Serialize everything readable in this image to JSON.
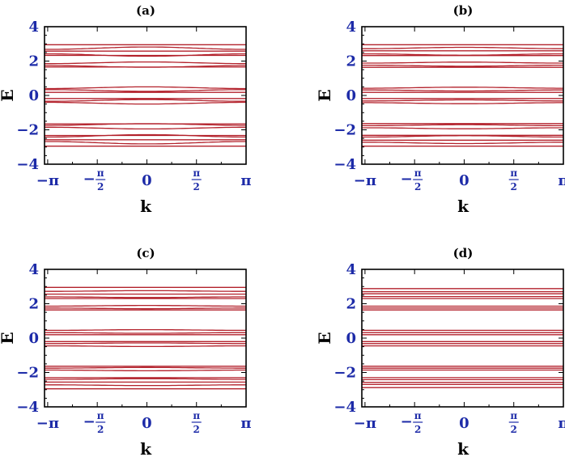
{
  "chart_data": [
    {
      "type": "line",
      "title": "(a)",
      "xlabel": "k",
      "ylabel": "E",
      "xlim": [
        -3.2416,
        3.1416
      ],
      "ylim": [
        -4,
        4
      ],
      "xticks": [
        "−π",
        "−π/2",
        "0",
        "π/2",
        "π"
      ],
      "yticks": [
        "−4",
        "−2",
        "0",
        "2",
        "4"
      ],
      "line_color": "#b3212b",
      "bands": [
        {
          "c": 2.95,
          "a": 0.0
        },
        {
          "c": 2.68,
          "a": 0.07
        },
        {
          "c": 2.58,
          "a": 0.0
        },
        {
          "c": 2.42,
          "a": -0.07
        },
        {
          "c": 2.33,
          "a": 0.0
        },
        {
          "c": 1.85,
          "a": 0.05
        },
        {
          "c": 1.74,
          "a": -0.05
        },
        {
          "c": 1.65,
          "a": 0.0
        },
        {
          "c": 0.4,
          "a": 0.05
        },
        {
          "c": 0.34,
          "a": -0.05
        },
        {
          "c": 0.18,
          "a": 0.0
        },
        {
          "c": -0.18,
          "a": 0.0
        },
        {
          "c": -0.34,
          "a": 0.05
        },
        {
          "c": -0.4,
          "a": -0.05
        },
        {
          "c": -1.65,
          "a": 0.0
        },
        {
          "c": -1.74,
          "a": 0.05
        },
        {
          "c": -1.85,
          "a": -0.05
        },
        {
          "c": -2.33,
          "a": 0.0
        },
        {
          "c": -2.42,
          "a": 0.07
        },
        {
          "c": -2.58,
          "a": 0.0
        },
        {
          "c": -2.68,
          "a": -0.07
        },
        {
          "c": -2.95,
          "a": 0.0
        }
      ]
    },
    {
      "type": "line",
      "title": "(b)",
      "xlabel": "k",
      "ylabel": "E",
      "xlim": [
        -3.2416,
        3.1416
      ],
      "ylim": [
        -4,
        4
      ],
      "xticks": [
        "−π",
        "−π/2",
        "0",
        "π/2",
        "π"
      ],
      "yticks": [
        "−4",
        "−2",
        "0",
        "2",
        "4"
      ],
      "line_color": "#b3212b",
      "bands": [
        {
          "c": 2.95,
          "a": 0.0
        },
        {
          "c": 2.72,
          "a": 0.04
        },
        {
          "c": 2.6,
          "a": 0.0
        },
        {
          "c": 2.42,
          "a": -0.04
        },
        {
          "c": 2.32,
          "a": 0.0
        },
        {
          "c": 1.88,
          "a": 0.03
        },
        {
          "c": 1.76,
          "a": -0.03
        },
        {
          "c": 1.64,
          "a": 0.0
        },
        {
          "c": 0.42,
          "a": 0.03
        },
        {
          "c": 0.32,
          "a": -0.03
        },
        {
          "c": 0.18,
          "a": 0.0
        },
        {
          "c": -0.18,
          "a": 0.0
        },
        {
          "c": -0.32,
          "a": 0.03
        },
        {
          "c": -0.42,
          "a": -0.03
        },
        {
          "c": -1.64,
          "a": 0.0
        },
        {
          "c": -1.76,
          "a": 0.03
        },
        {
          "c": -1.88,
          "a": -0.03
        },
        {
          "c": -2.32,
          "a": 0.0
        },
        {
          "c": -2.42,
          "a": 0.04
        },
        {
          "c": -2.6,
          "a": 0.0
        },
        {
          "c": -2.72,
          "a": -0.04
        },
        {
          "c": -2.95,
          "a": 0.0
        }
      ]
    },
    {
      "type": "line",
      "title": "(c)",
      "xlabel": "k",
      "ylabel": "E",
      "xlim": [
        -3.2416,
        3.1416
      ],
      "ylim": [
        -4,
        4
      ],
      "xticks": [
        "−π",
        "−π/2",
        "0",
        "π/2",
        "π"
      ],
      "yticks": [
        "−4",
        "−2",
        "0",
        "2",
        "4"
      ],
      "line_color": "#b3212b",
      "bands": [
        {
          "c": 2.95,
          "a": 0.0
        },
        {
          "c": 2.72,
          "a": 0.02
        },
        {
          "c": 2.56,
          "a": 0.0
        },
        {
          "c": 2.4,
          "a": -0.02
        },
        {
          "c": 2.3,
          "a": 0.0
        },
        {
          "c": 1.86,
          "a": 0.02
        },
        {
          "c": 1.75,
          "a": -0.02
        },
        {
          "c": 1.64,
          "a": 0.0
        },
        {
          "c": 0.45,
          "a": 0.02
        },
        {
          "c": 0.32,
          "a": -0.02
        },
        {
          "c": 0.2,
          "a": 0.0
        },
        {
          "c": -0.2,
          "a": 0.0
        },
        {
          "c": -0.32,
          "a": 0.02
        },
        {
          "c": -0.45,
          "a": -0.02
        },
        {
          "c": -1.64,
          "a": 0.0
        },
        {
          "c": -1.75,
          "a": 0.02
        },
        {
          "c": -1.86,
          "a": -0.02
        },
        {
          "c": -2.3,
          "a": 0.0
        },
        {
          "c": -2.4,
          "a": 0.02
        },
        {
          "c": -2.56,
          "a": 0.0
        },
        {
          "c": -2.72,
          "a": -0.02
        },
        {
          "c": -2.95,
          "a": 0.0
        }
      ]
    },
    {
      "type": "line",
      "title": "(d)",
      "xlabel": "k",
      "ylabel": "E",
      "xlim": [
        -3.2416,
        3.1416
      ],
      "ylim": [
        -4,
        4
      ],
      "xticks": [
        "−π",
        "−π/2",
        "0",
        "π/2",
        "π"
      ],
      "yticks": [
        "−4",
        "−2",
        "0",
        "2",
        "4"
      ],
      "line_color": "#b3212b",
      "bands": [
        {
          "c": 2.88,
          "a": 0.0
        },
        {
          "c": 2.7,
          "a": 0.0
        },
        {
          "c": 2.58,
          "a": 0.0
        },
        {
          "c": 2.42,
          "a": 0.0
        },
        {
          "c": 2.3,
          "a": 0.0
        },
        {
          "c": 1.86,
          "a": 0.0
        },
        {
          "c": 1.75,
          "a": 0.0
        },
        {
          "c": 1.64,
          "a": 0.0
        },
        {
          "c": 0.45,
          "a": 0.0
        },
        {
          "c": 0.32,
          "a": 0.0
        },
        {
          "c": 0.2,
          "a": 0.0
        },
        {
          "c": -0.2,
          "a": 0.0
        },
        {
          "c": -0.32,
          "a": 0.0
        },
        {
          "c": -0.45,
          "a": 0.0
        },
        {
          "c": -1.64,
          "a": 0.0
        },
        {
          "c": -1.75,
          "a": 0.0
        },
        {
          "c": -1.86,
          "a": 0.0
        },
        {
          "c": -2.3,
          "a": 0.0
        },
        {
          "c": -2.42,
          "a": 0.0
        },
        {
          "c": -2.58,
          "a": 0.0
        },
        {
          "c": -2.7,
          "a": 0.0
        },
        {
          "c": -2.88,
          "a": 0.0
        }
      ]
    }
  ]
}
